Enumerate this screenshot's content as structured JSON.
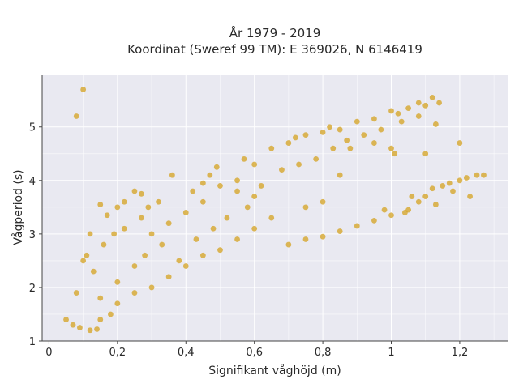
{
  "chart_data": {
    "type": "scatter",
    "title_line1": "År 1979 - 2019",
    "title_line2": "Koordinat (Sweref 99 TM): E 369026, N 6146419",
    "xlabel": "Signifikant våghöjd (m)",
    "ylabel": "Vågperiod (s)",
    "xlim": [
      -0.02,
      1.34
    ],
    "ylim": [
      1.0,
      5.98
    ],
    "x_ticks": [
      0,
      0.2,
      0.4,
      0.6,
      0.8,
      1.0,
      1.2
    ],
    "x_tick_labels": [
      "0",
      "0,2",
      "0,4",
      "0,6",
      "0,8",
      "1",
      "1,2"
    ],
    "y_ticks": [
      1,
      2,
      3,
      4,
      5
    ],
    "y_tick_labels": [
      "1",
      "2",
      "3",
      "4",
      "5"
    ],
    "grid": true,
    "marker_color": "#d4a21f",
    "background_color": "#e9e9f1",
    "series": [
      {
        "values": [
          [
            0.1,
            5.7
          ],
          [
            0.08,
            5.2
          ],
          [
            0.05,
            1.4
          ],
          [
            0.07,
            1.3
          ],
          [
            0.09,
            1.25
          ],
          [
            0.12,
            1.2
          ],
          [
            0.14,
            1.22
          ],
          [
            0.08,
            1.9
          ],
          [
            0.1,
            2.5
          ],
          [
            0.12,
            3.0
          ],
          [
            0.15,
            3.55
          ],
          [
            0.17,
            3.35
          ],
          [
            0.2,
            3.5
          ],
          [
            0.22,
            3.6
          ],
          [
            0.25,
            3.8
          ],
          [
            0.27,
            3.75
          ],
          [
            0.29,
            3.5
          ],
          [
            0.32,
            3.6
          ],
          [
            0.36,
            4.1
          ],
          [
            0.42,
            3.8
          ],
          [
            0.45,
            3.95
          ],
          [
            0.47,
            4.1
          ],
          [
            0.49,
            4.25
          ],
          [
            0.5,
            3.9
          ],
          [
            0.55,
            4.0
          ],
          [
            0.57,
            4.4
          ],
          [
            0.6,
            4.3
          ],
          [
            0.65,
            4.6
          ],
          [
            0.7,
            4.7
          ],
          [
            0.72,
            4.8
          ],
          [
            0.75,
            4.85
          ],
          [
            0.8,
            4.9
          ],
          [
            0.82,
            5.0
          ],
          [
            0.85,
            4.95
          ],
          [
            0.9,
            5.1
          ],
          [
            0.95,
            5.15
          ],
          [
            1.0,
            5.3
          ],
          [
            1.02,
            5.25
          ],
          [
            1.05,
            5.35
          ],
          [
            1.08,
            5.45
          ],
          [
            1.1,
            5.4
          ],
          [
            1.12,
            5.55
          ],
          [
            1.14,
            5.45
          ],
          [
            1.13,
            5.05
          ],
          [
            1.08,
            5.2
          ],
          [
            1.03,
            5.1
          ],
          [
            1.2,
            4.7
          ],
          [
            1.1,
            4.5
          ],
          [
            1.0,
            4.6
          ],
          [
            0.95,
            4.7
          ],
          [
            1.01,
            4.5
          ],
          [
            0.88,
            4.6
          ],
          [
            0.85,
            4.1
          ],
          [
            0.8,
            3.6
          ],
          [
            0.75,
            3.5
          ],
          [
            0.65,
            3.3
          ],
          [
            0.6,
            3.1
          ],
          [
            0.55,
            2.9
          ],
          [
            0.5,
            2.7
          ],
          [
            0.45,
            2.6
          ],
          [
            0.4,
            2.4
          ],
          [
            0.35,
            2.2
          ],
          [
            0.3,
            2.0
          ],
          [
            0.25,
            1.9
          ],
          [
            0.2,
            1.7
          ],
          [
            0.18,
            1.5
          ],
          [
            0.15,
            1.4
          ],
          [
            0.7,
            2.8
          ],
          [
            0.75,
            2.9
          ],
          [
            0.8,
            2.95
          ],
          [
            0.85,
            3.05
          ],
          [
            0.9,
            3.15
          ],
          [
            0.95,
            3.25
          ],
          [
            1.0,
            3.35
          ],
          [
            1.05,
            3.45
          ],
          [
            1.08,
            3.6
          ],
          [
            1.1,
            3.7
          ],
          [
            1.12,
            3.85
          ],
          [
            1.15,
            3.9
          ],
          [
            1.17,
            3.95
          ],
          [
            1.2,
            4.0
          ],
          [
            1.22,
            4.05
          ],
          [
            1.25,
            4.1
          ],
          [
            1.27,
            4.1
          ],
          [
            1.23,
            3.7
          ],
          [
            1.18,
            3.8
          ],
          [
            1.13,
            3.55
          ],
          [
            1.06,
            3.7
          ],
          [
            1.04,
            3.4
          ],
          [
            0.98,
            3.45
          ],
          [
            0.3,
            3.0
          ],
          [
            0.35,
            3.2
          ],
          [
            0.4,
            3.4
          ],
          [
            0.45,
            3.6
          ],
          [
            0.55,
            3.8
          ],
          [
            0.6,
            3.7
          ],
          [
            0.25,
            2.4
          ],
          [
            0.28,
            2.6
          ],
          [
            0.33,
            2.8
          ],
          [
            0.38,
            2.5
          ],
          [
            0.43,
            2.9
          ],
          [
            0.48,
            3.1
          ],
          [
            0.52,
            3.3
          ],
          [
            0.58,
            3.5
          ],
          [
            0.62,
            3.9
          ],
          [
            0.68,
            4.2
          ],
          [
            0.73,
            4.3
          ],
          [
            0.78,
            4.4
          ],
          [
            0.83,
            4.6
          ],
          [
            0.87,
            4.75
          ],
          [
            0.92,
            4.85
          ],
          [
            0.97,
            4.95
          ],
          [
            0.2,
            2.1
          ],
          [
            0.15,
            1.8
          ],
          [
            0.13,
            2.3
          ],
          [
            0.11,
            2.6
          ],
          [
            0.16,
            2.8
          ],
          [
            0.22,
            3.1
          ],
          [
            0.27,
            3.3
          ],
          [
            0.19,
            3.0
          ]
        ]
      }
    ]
  }
}
